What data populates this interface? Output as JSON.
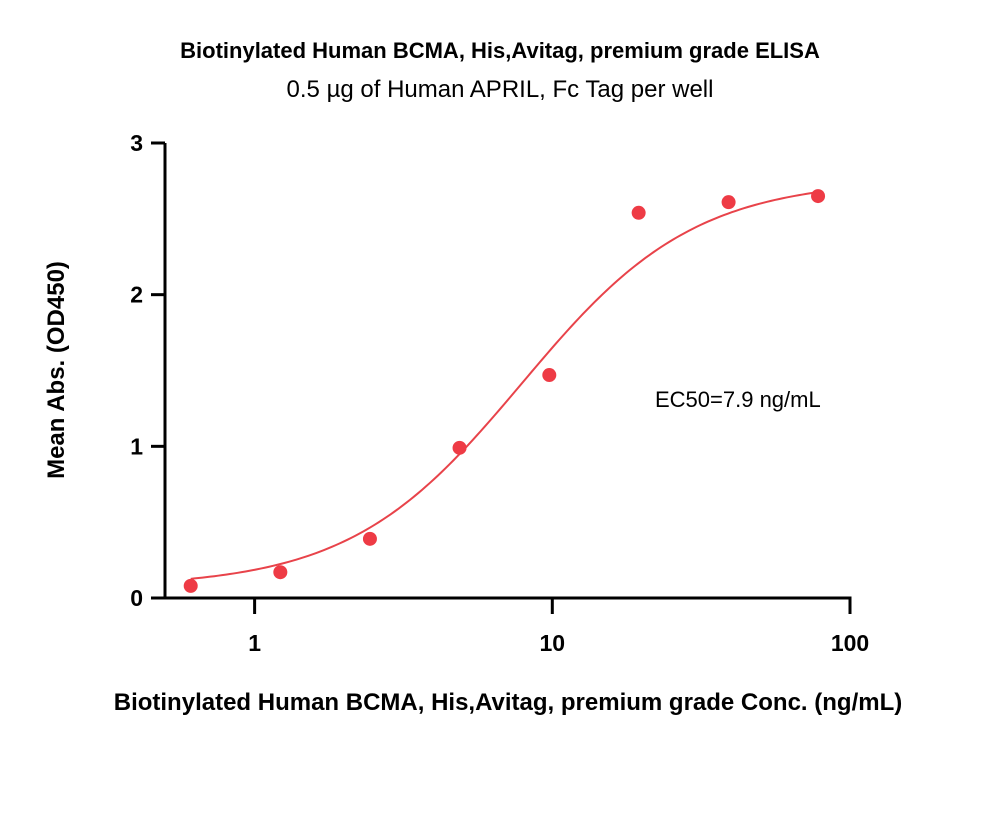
{
  "chart_data": {
    "type": "scatter",
    "title": "Biotinylated Human BCMA, His,Avitag, premium grade ELISA",
    "subtitle": "0.5 µg of Human APRIL, Fc Tag per well",
    "xlabel": "Biotinylated Human BCMA, His,Avitag, premium grade Conc. (ng/mL)",
    "ylabel": "Mean Abs. (OD450)",
    "xscale": "log",
    "xlim": [
      0.5,
      100
    ],
    "ylim": [
      0,
      3
    ],
    "xticks": [
      "1",
      "10",
      "100"
    ],
    "yticks": [
      "0",
      "1",
      "2",
      "3"
    ],
    "grid": false,
    "annotation": "EC50=7.9 ng/mL",
    "point_color": "#ee3b45",
    "line_color": "#e8434a",
    "series": [
      {
        "x": [
          0.61,
          1.22,
          2.44,
          4.88,
          9.77,
          19.5,
          39.1,
          78.1
        ],
        "y": [
          0.08,
          0.17,
          0.39,
          0.99,
          1.47,
          2.54,
          2.61,
          2.65
        ]
      }
    ],
    "fit": {
      "type": "4PL",
      "bottom": 0.07,
      "top": 2.76,
      "ec50": 7.9,
      "hill": 1.5,
      "x_range": [
        0.61,
        78.1
      ]
    }
  }
}
